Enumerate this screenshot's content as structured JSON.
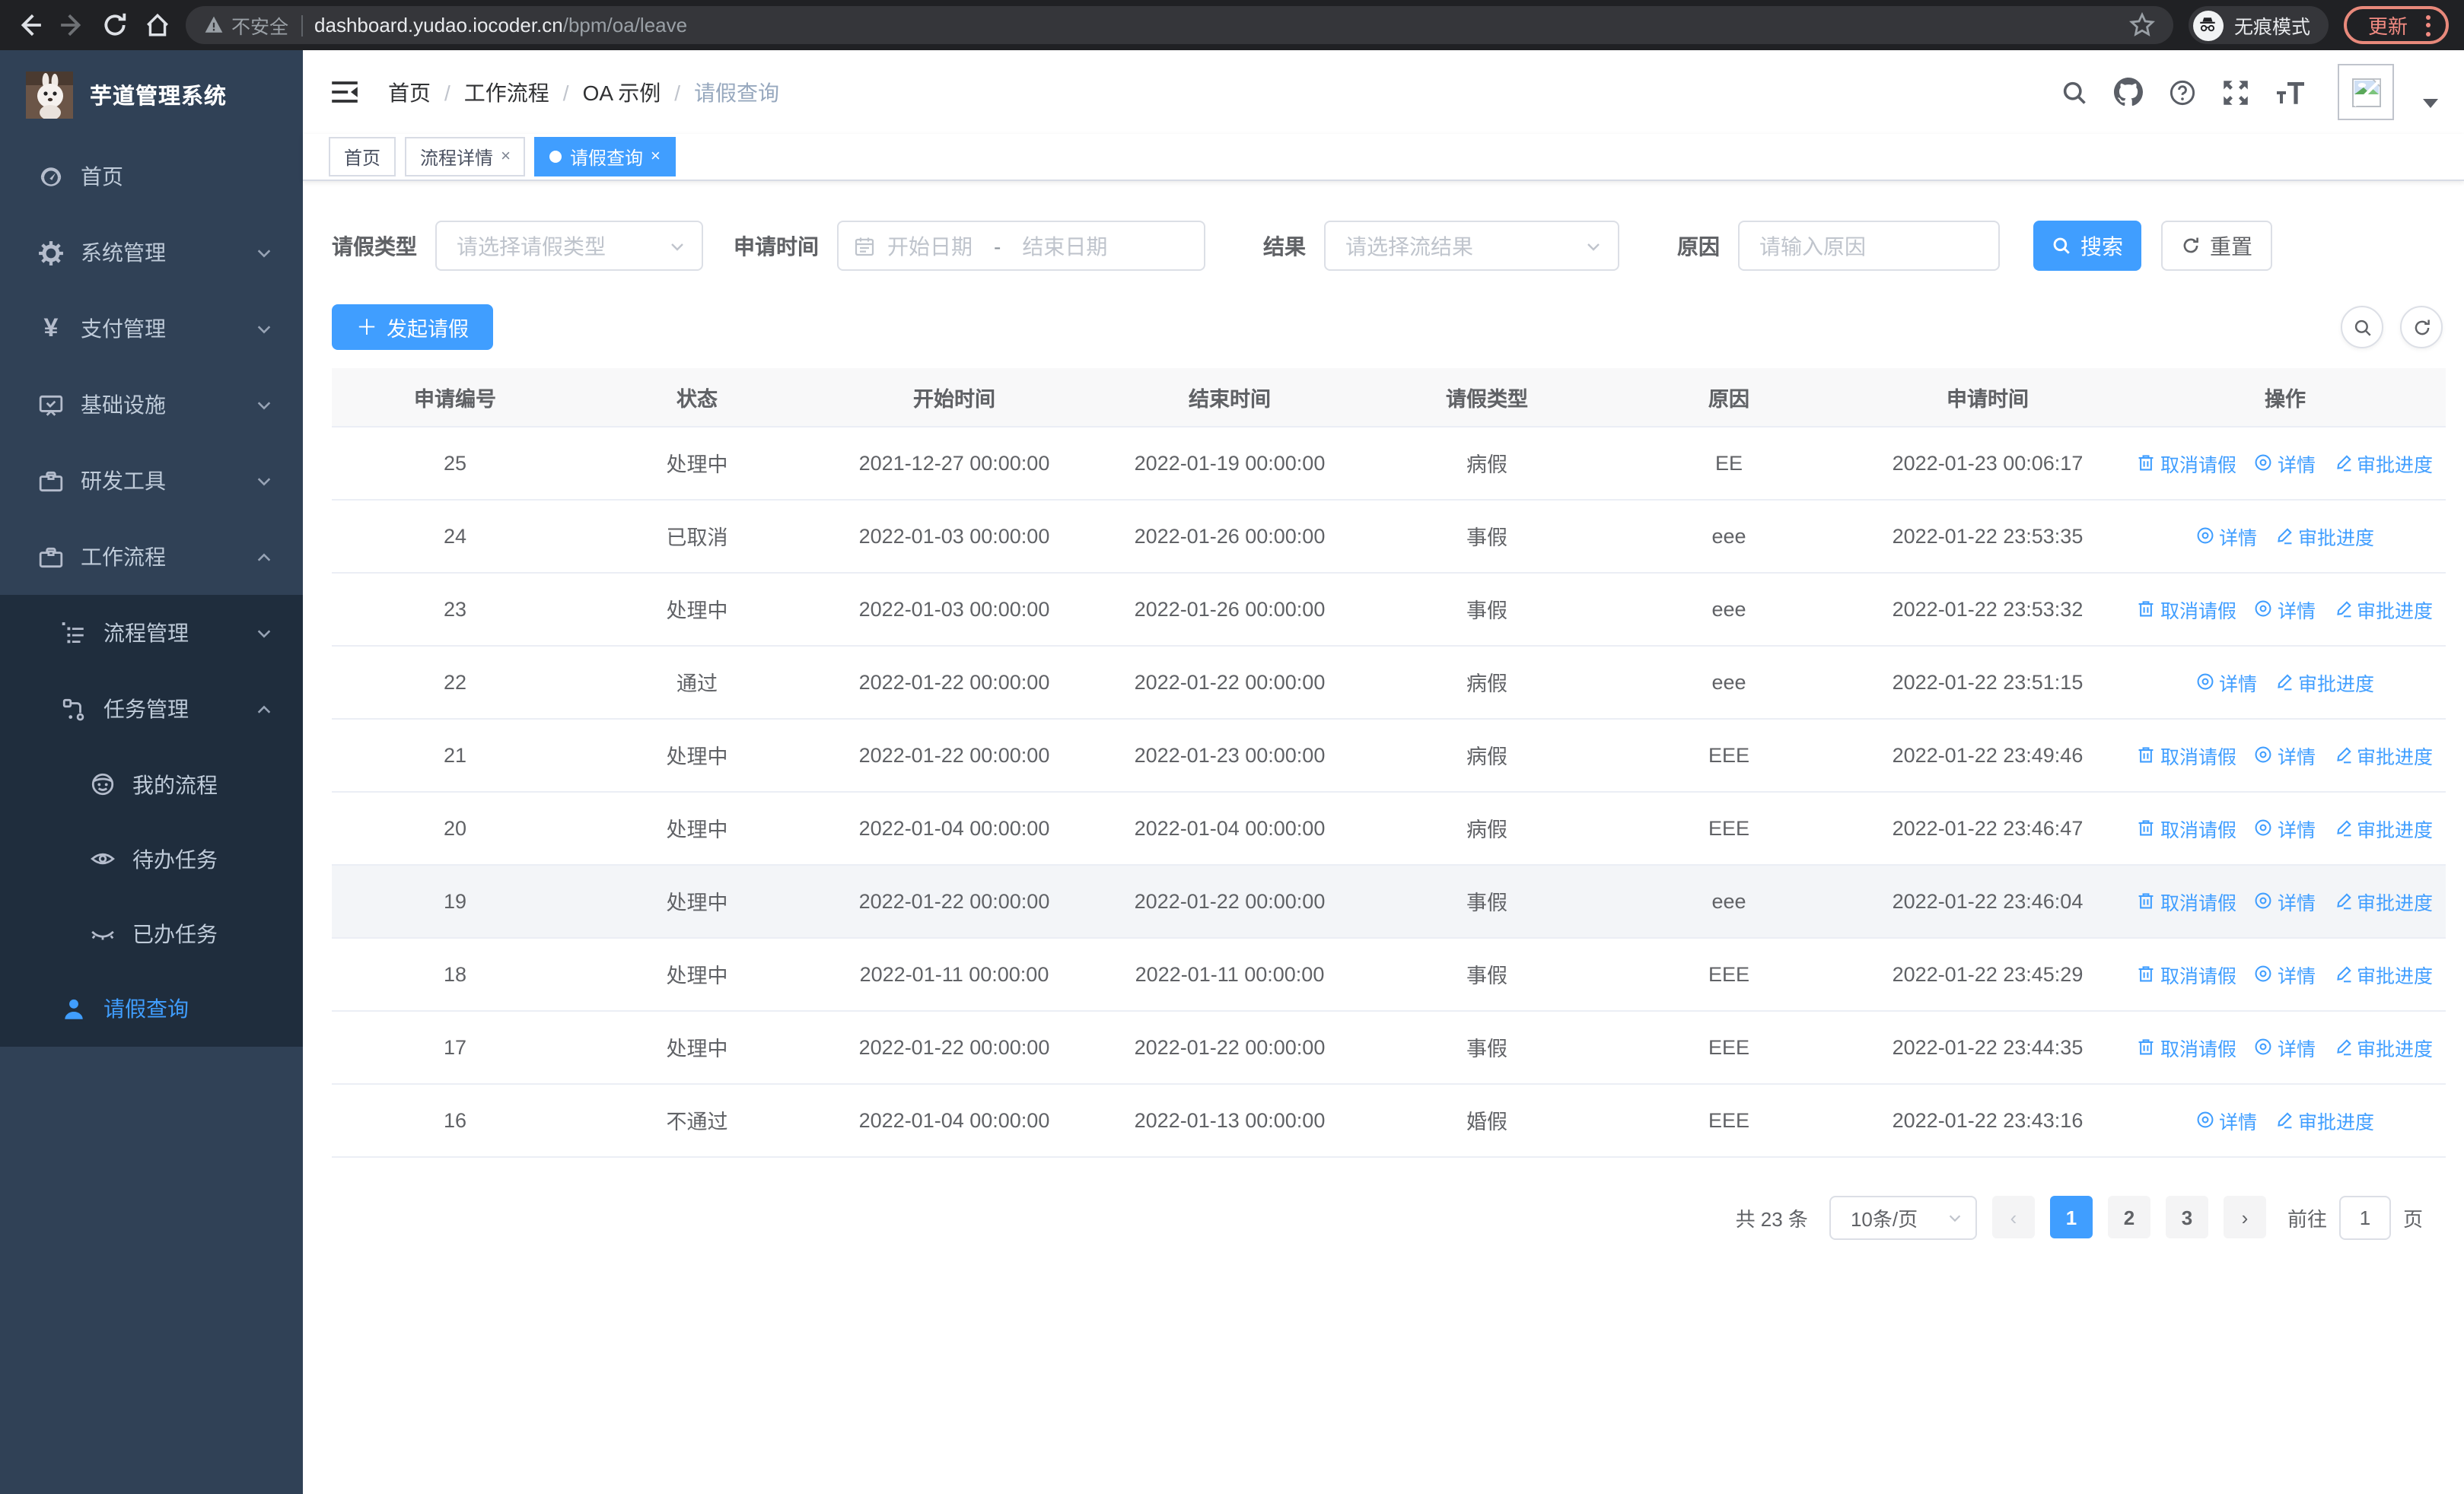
{
  "browser": {
    "security_label": "不安全",
    "url_host": "dashboard.yudao.iocoder.cn",
    "url_path": "/bpm/oa/leave",
    "incognito_label": "无痕模式",
    "update_label": "更新"
  },
  "sidebar": {
    "title": "芋道管理系统",
    "items": [
      {
        "label": "首页",
        "icon": "dashboard-icon"
      },
      {
        "label": "系统管理",
        "icon": "gear-icon"
      },
      {
        "label": "支付管理",
        "icon": "yen-icon"
      },
      {
        "label": "基础设施",
        "icon": "monitor-icon"
      },
      {
        "label": "研发工具",
        "icon": "toolbox-icon"
      },
      {
        "label": "工作流程",
        "icon": "toolbox-icon"
      }
    ],
    "workflow_children": [
      {
        "label": "流程管理",
        "icon": "tree-list-icon"
      },
      {
        "label": "任务管理",
        "icon": "flow-node-icon"
      },
      {
        "label": "请假查询",
        "icon": "user-icon",
        "active": true
      }
    ],
    "task_children": [
      {
        "label": "我的流程",
        "icon": "face-icon"
      },
      {
        "label": "待办任务",
        "icon": "eye-icon"
      },
      {
        "label": "已办任务",
        "icon": "eye-closed-icon"
      }
    ]
  },
  "header": {
    "breadcrumb": [
      {
        "label": "首页"
      },
      {
        "label": "工作流程"
      },
      {
        "label": "OA 示例"
      },
      {
        "label": "请假查询"
      }
    ]
  },
  "tabs": [
    {
      "label": "首页"
    },
    {
      "label": "流程详情",
      "close": "×"
    },
    {
      "label": "请假查询",
      "close": "×",
      "active": true
    }
  ],
  "filters": {
    "leave_type_label": "请假类型",
    "leave_type_placeholder": "请选择请假类型",
    "apply_time_label": "申请时间",
    "start_placeholder": "开始日期",
    "range_separator": "-",
    "end_placeholder": "结束日期",
    "result_label": "结果",
    "result_placeholder": "请选择流结果",
    "reason_label": "原因",
    "reason_placeholder": "请输入原因",
    "search_label": "搜索",
    "reset_label": "重置"
  },
  "toolbar": {
    "create_label": "发起请假"
  },
  "table": {
    "columns": [
      "申请编号",
      "状态",
      "开始时间",
      "结束时间",
      "请假类型",
      "原因",
      "申请时间",
      "操作"
    ],
    "action_labels": {
      "cancel": "取消请假",
      "detail": "详情",
      "progress": "审批进度"
    },
    "rows": [
      {
        "id": "25",
        "status": "处理中",
        "start": "2021-12-27 00:00:00",
        "end": "2022-01-19 00:00:00",
        "type": "病假",
        "reason": "EE",
        "apply_time": "2022-01-23 00:06:17",
        "actions": [
          "cancel",
          "detail",
          "progress"
        ]
      },
      {
        "id": "24",
        "status": "已取消",
        "start": "2022-01-03 00:00:00",
        "end": "2022-01-26 00:00:00",
        "type": "事假",
        "reason": "eee",
        "apply_time": "2022-01-22 23:53:35",
        "actions": [
          "detail",
          "progress"
        ]
      },
      {
        "id": "23",
        "status": "处理中",
        "start": "2022-01-03 00:00:00",
        "end": "2022-01-26 00:00:00",
        "type": "事假",
        "reason": "eee",
        "apply_time": "2022-01-22 23:53:32",
        "actions": [
          "cancel",
          "detail",
          "progress"
        ]
      },
      {
        "id": "22",
        "status": "通过",
        "start": "2022-01-22 00:00:00",
        "end": "2022-01-22 00:00:00",
        "type": "病假",
        "reason": "eee",
        "apply_time": "2022-01-22 23:51:15",
        "actions": [
          "detail",
          "progress"
        ]
      },
      {
        "id": "21",
        "status": "处理中",
        "start": "2022-01-22 00:00:00",
        "end": "2022-01-23 00:00:00",
        "type": "病假",
        "reason": "EEE",
        "apply_time": "2022-01-22 23:49:46",
        "actions": [
          "cancel",
          "detail",
          "progress"
        ]
      },
      {
        "id": "20",
        "status": "处理中",
        "start": "2022-01-04 00:00:00",
        "end": "2022-01-04 00:00:00",
        "type": "病假",
        "reason": "EEE",
        "apply_time": "2022-01-22 23:46:47",
        "actions": [
          "cancel",
          "detail",
          "progress"
        ]
      },
      {
        "id": "19",
        "status": "处理中",
        "start": "2022-01-22 00:00:00",
        "end": "2022-01-22 00:00:00",
        "type": "事假",
        "reason": "eee",
        "apply_time": "2022-01-22 23:46:04",
        "actions": [
          "cancel",
          "detail",
          "progress"
        ],
        "highlighted": true
      },
      {
        "id": "18",
        "status": "处理中",
        "start": "2022-01-11 00:00:00",
        "end": "2022-01-11 00:00:00",
        "type": "事假",
        "reason": "EEE",
        "apply_time": "2022-01-22 23:45:29",
        "actions": [
          "cancel",
          "detail",
          "progress"
        ]
      },
      {
        "id": "17",
        "status": "处理中",
        "start": "2022-01-22 00:00:00",
        "end": "2022-01-22 00:00:00",
        "type": "事假",
        "reason": "EEE",
        "apply_time": "2022-01-22 23:44:35",
        "actions": [
          "cancel",
          "detail",
          "progress"
        ]
      },
      {
        "id": "16",
        "status": "不通过",
        "start": "2022-01-04 00:00:00",
        "end": "2022-01-13 00:00:00",
        "type": "婚假",
        "reason": "EEE",
        "apply_time": "2022-01-22 23:43:16",
        "actions": [
          "detail",
          "progress"
        ]
      }
    ]
  },
  "pagination": {
    "total": "共 23 条",
    "page_size": "10条/页",
    "prev": "‹",
    "pages": [
      "1",
      "2",
      "3"
    ],
    "next": "›",
    "active_page": "1",
    "goto_label": "前往",
    "goto_value": "1",
    "unit_label": "页"
  },
  "colors": {
    "primary": "#409eff",
    "sidebar_bg": "#304156",
    "submenu_bg": "#1f2d3d"
  }
}
